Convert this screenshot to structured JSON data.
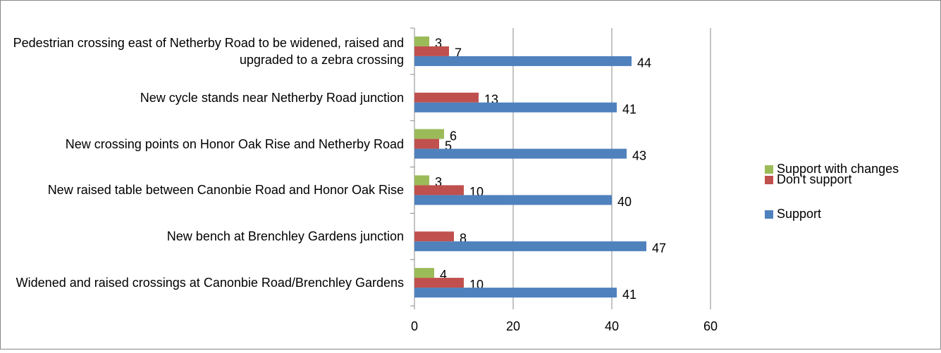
{
  "chart_data": {
    "type": "bar",
    "orientation": "horizontal",
    "categories": [
      "Pedestrian crossing east of Netherby Road to be widened, raised and upgraded to a zebra crossing",
      "New cycle stands near Netherby Road junction",
      "New crossing points on Honor Oak Rise and Netherby Road",
      "New raised table between Canonbie Road and Honor Oak Rise",
      "New bench at Brenchley Gardens junction",
      "Widened and raised crossings at Canonbie Road/Brenchley Gardens"
    ],
    "series": [
      {
        "name": "Support with changes",
        "color": "#9bbb59",
        "values": [
          3,
          null,
          6,
          3,
          null,
          4
        ]
      },
      {
        "name": "Don't support",
        "color": "#c0504d",
        "values": [
          7,
          13,
          5,
          10,
          8,
          10
        ]
      },
      {
        "name": "Support",
        "color": "#4f81bd",
        "values": [
          44,
          41,
          43,
          40,
          47,
          41
        ]
      }
    ],
    "xlim": [
      0,
      60
    ],
    "xticks": [
      0,
      20,
      40,
      60
    ],
    "grid": true,
    "legend": "right"
  }
}
